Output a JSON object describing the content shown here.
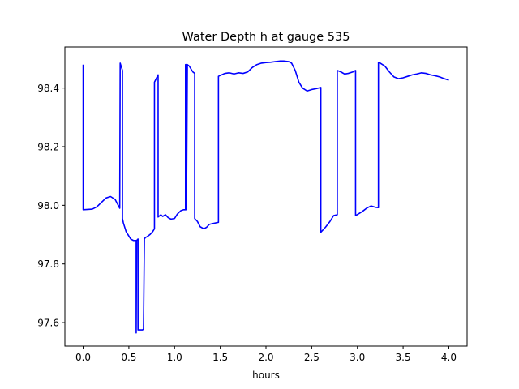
{
  "chart_data": {
    "type": "line",
    "title": "Water Depth h at gauge 535",
    "xlabel": "hours",
    "ylabel": "",
    "xlim": [
      -0.2,
      4.2
    ],
    "ylim": [
      97.52,
      98.54
    ],
    "xticks": [
      0.0,
      0.5,
      1.0,
      1.5,
      2.0,
      2.5,
      3.0,
      3.5,
      4.0
    ],
    "xtick_labels": [
      "0.0",
      "0.5",
      "1.0",
      "1.5",
      "2.0",
      "2.5",
      "3.0",
      "3.5",
      "4.0"
    ],
    "yticks": [
      97.6,
      97.8,
      98.0,
      98.2,
      98.4
    ],
    "ytick_labels": [
      "97.6",
      "97.8",
      "98.0",
      "98.2",
      "98.4"
    ],
    "grid": false,
    "series": [
      {
        "color": "#0000ff",
        "x": [
          0.0,
          0.0,
          0.05,
          0.1,
          0.15,
          0.2,
          0.25,
          0.3,
          0.35,
          0.4,
          0.405,
          0.41,
          0.41,
          0.43,
          0.43,
          0.44,
          0.45,
          0.47,
          0.5,
          0.52,
          0.55,
          0.58,
          0.58,
          0.585,
          0.6,
          0.6,
          0.61,
          0.65,
          0.66,
          0.67,
          0.68,
          0.7,
          0.73,
          0.76,
          0.78,
          0.78,
          0.82,
          0.82,
          0.85,
          0.87,
          0.9,
          0.93,
          0.96,
          1.0,
          1.03,
          1.07,
          1.1,
          1.12,
          1.12,
          1.13,
          1.13,
          1.14,
          1.16,
          1.2,
          1.22,
          1.22,
          1.25,
          1.28,
          1.32,
          1.35,
          1.38,
          1.42,
          1.48,
          1.48,
          1.5,
          1.55,
          1.6,
          1.65,
          1.7,
          1.75,
          1.8,
          1.85,
          1.9,
          1.95,
          2.0,
          2.05,
          2.1,
          2.15,
          2.2,
          2.25,
          2.28,
          2.32,
          2.36,
          2.4,
          2.45,
          2.5,
          2.55,
          2.6,
          2.6,
          2.65,
          2.7,
          2.74,
          2.78,
          2.78,
          2.82,
          2.86,
          2.9,
          2.95,
          2.98,
          2.98,
          3.05,
          3.1,
          3.15,
          3.2,
          3.23,
          3.23,
          3.25,
          3.3,
          3.35,
          3.4,
          3.45,
          3.5,
          3.55,
          3.6,
          3.65,
          3.7,
          3.75,
          3.8,
          3.85,
          3.9,
          3.95,
          4.0
        ],
        "y": [
          98.48,
          97.985,
          97.986,
          97.987,
          97.995,
          98.01,
          98.025,
          98.03,
          98.02,
          97.99,
          98.485,
          98.48,
          98.48,
          98.46,
          97.955,
          97.94,
          97.93,
          97.91,
          97.895,
          97.885,
          97.88,
          97.88,
          97.565,
          97.88,
          97.885,
          97.575,
          97.575,
          97.575,
          97.578,
          97.885,
          97.89,
          97.893,
          97.9,
          97.91,
          97.92,
          98.42,
          98.445,
          97.96,
          97.968,
          97.962,
          97.968,
          97.958,
          97.953,
          97.955,
          97.97,
          97.982,
          97.985,
          97.985,
          98.48,
          98.48,
          97.985,
          98.48,
          98.475,
          98.455,
          98.45,
          97.955,
          97.945,
          97.927,
          97.92,
          97.925,
          97.935,
          97.938,
          97.942,
          98.44,
          98.443,
          98.45,
          98.452,
          98.448,
          98.452,
          98.45,
          98.455,
          98.47,
          98.48,
          98.485,
          98.487,
          98.488,
          98.49,
          98.492,
          98.492,
          98.49,
          98.485,
          98.46,
          98.42,
          98.4,
          98.39,
          98.395,
          98.398,
          98.402,
          97.908,
          97.925,
          97.945,
          97.965,
          97.968,
          98.46,
          98.455,
          98.448,
          98.45,
          98.455,
          98.46,
          97.965,
          97.978,
          97.99,
          97.998,
          97.993,
          97.992,
          98.487,
          98.485,
          98.475,
          98.455,
          98.438,
          98.432,
          98.435,
          98.44,
          98.445,
          98.448,
          98.452,
          98.45,
          98.445,
          98.442,
          98.438,
          98.432,
          98.427
        ]
      }
    ]
  }
}
